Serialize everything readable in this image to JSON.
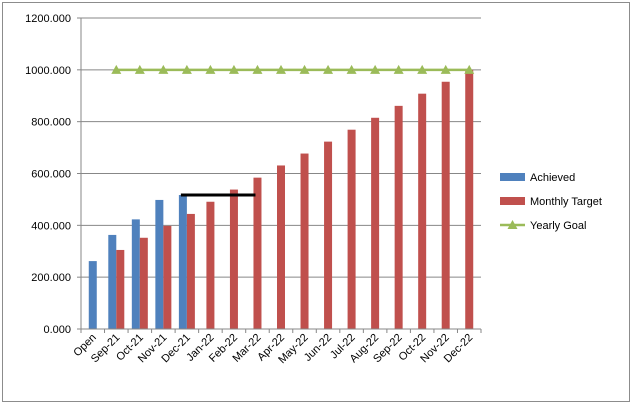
{
  "chart_data": {
    "type": "bar",
    "categories": [
      "Open",
      "Sep-21",
      "Oct-21",
      "Nov-21",
      "Dec-21",
      "Jan-22",
      "Feb-22",
      "Mar-22",
      "Apr-22",
      "May-22",
      "Jun-22",
      "Jul-22",
      "Aug-22",
      "Sep-22",
      "Oct-22",
      "Nov-22",
      "Dec-22"
    ],
    "ylim": [
      0,
      1200
    ],
    "yticks": [
      "0.000",
      "200.000",
      "400.000",
      "600.000",
      "800.000",
      "1000.000",
      "1200.000"
    ],
    "grid": true,
    "legend_position": "right",
    "series": [
      {
        "name": "Achieved",
        "type": "bar",
        "color": "#4f81bd",
        "values": [
          262,
          363,
          423,
          498,
          517,
          null,
          null,
          null,
          null,
          null,
          null,
          null,
          null,
          null,
          null,
          null,
          null
        ]
      },
      {
        "name": "Monthly Target",
        "type": "bar",
        "color": "#c0504d",
        "values": [
          null,
          305,
          352,
          398,
          444,
          491,
          538,
          584,
          631,
          677,
          723,
          769,
          815,
          861,
          908,
          954,
          1000
        ]
      },
      {
        "name": "Yearly Goal",
        "type": "line",
        "color": "#9bbb59",
        "marker": "triangle",
        "values": [
          null,
          1000,
          1000,
          1000,
          1000,
          1000,
          1000,
          1000,
          1000,
          1000,
          1000,
          1000,
          1000,
          1000,
          1000,
          1000,
          1000
        ]
      }
    ],
    "annotation": {
      "type": "horizontal-line",
      "color": "#000000",
      "y": 517,
      "from": "Dec-21",
      "to": "Mar-22"
    }
  }
}
